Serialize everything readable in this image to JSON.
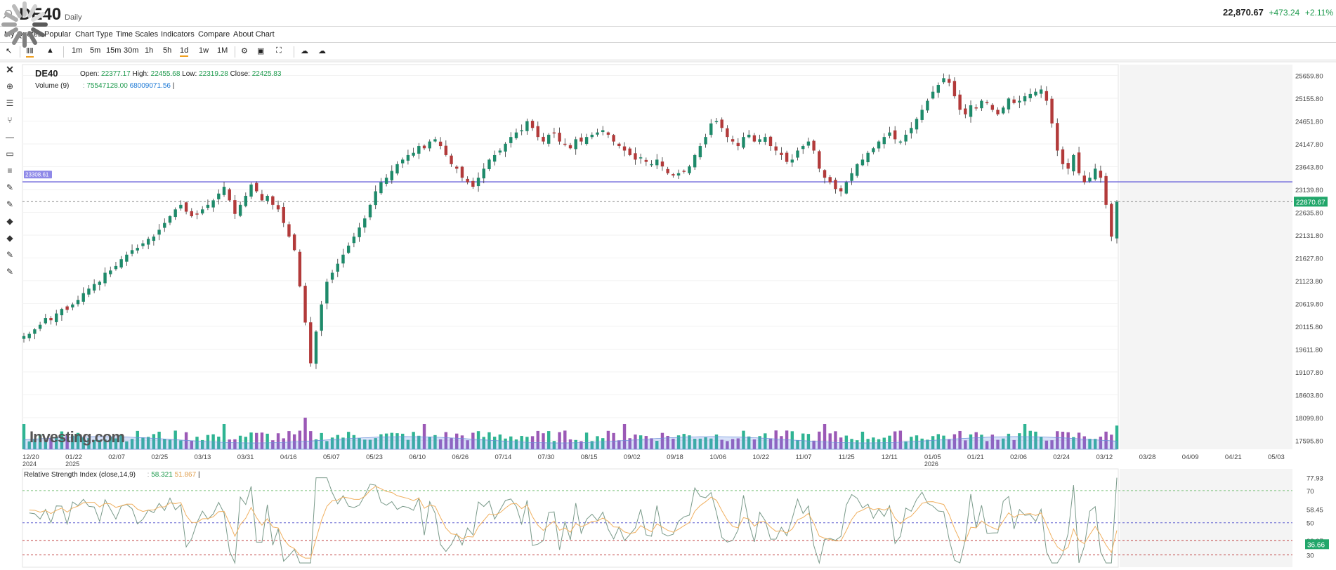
{
  "header": {
    "symbol": "DE40",
    "period": "Daily",
    "last": "22,870.67",
    "change": "+473.24",
    "change_pct": "+2.11%"
  },
  "menu": [
    "My Quotes",
    "Popular",
    "Chart Type",
    "Time Scales",
    "Indicators",
    "Compare",
    "About Chart"
  ],
  "toolbar": {
    "timeframes": [
      "1m",
      "5m",
      "15m",
      "30m",
      "1h",
      "5h",
      "1d",
      "1w",
      "1M"
    ],
    "active_timeframe": "1d",
    "icons": [
      "cursor-icon",
      "candles-icon",
      "mountain-icon",
      "gear-icon",
      "camera-icon",
      "fullscreen-icon",
      "cloud-download-icon",
      "cloud-upload-icon"
    ]
  },
  "legend": {
    "symbol": "DE40",
    "open_label": "Open:",
    "open": "22377.17",
    "high_label": "High:",
    "high": "22455.68",
    "low_label": "Low:",
    "low": "22319.28",
    "close_label": "Close:",
    "close": "22425.83",
    "volume_label": "Volume (9)",
    "volume_v1": "75547128.00",
    "volume_v2": "68009071.56"
  },
  "rsi_legend": {
    "label": "Relative Strength Index (close,14,9)",
    "v1": "58.321",
    "v2": "51.867"
  },
  "watermark": "Investing.com",
  "price_axis": [
    "25659.80",
    "25155.80",
    "24651.80",
    "24147.80",
    "23643.80",
    "23139.80",
    "22635.80",
    "22131.80",
    "21627.80",
    "21123.80",
    "20619.80",
    "20115.80",
    "19611.80",
    "19107.80",
    "18603.80",
    "18099.80",
    "17595.80"
  ],
  "price_marker": "22870.67",
  "hline_marker": "23308.61",
  "time_axis": [
    {
      "label": "12/20",
      "sub": "2024"
    },
    {
      "label": "01/22",
      "sub": "2025"
    },
    {
      "label": "02/07"
    },
    {
      "label": "02/25"
    },
    {
      "label": "03/13"
    },
    {
      "label": "03/31"
    },
    {
      "label": "04/16"
    },
    {
      "label": "05/07"
    },
    {
      "label": "05/23"
    },
    {
      "label": "06/10"
    },
    {
      "label": "06/26"
    },
    {
      "label": "07/14"
    },
    {
      "label": "07/30"
    },
    {
      "label": "08/15"
    },
    {
      "label": "09/02"
    },
    {
      "label": "09/18"
    },
    {
      "label": "10/06"
    },
    {
      "label": "10/22"
    },
    {
      "label": "11/07"
    },
    {
      "label": "11/25"
    },
    {
      "label": "12/11"
    },
    {
      "label": "01/05",
      "sub": "2026"
    },
    {
      "label": "01/21"
    },
    {
      "label": "02/06"
    },
    {
      "label": "02/24"
    },
    {
      "label": "03/12"
    },
    {
      "label": "03/28"
    },
    {
      "label": "04/09"
    },
    {
      "label": "04/21"
    },
    {
      "label": "05/03"
    }
  ],
  "rsi_axis": [
    "77.93",
    "70",
    "58.45",
    "50",
    "38.97",
    "30"
  ],
  "rsi_marker": "36.66",
  "colors": {
    "up": "#1e8a6a",
    "down": "#b23a3a",
    "hline": "#6b63d9",
    "volume_up": "#2fb493",
    "volume_down": "#9b59b6",
    "rsi": "#7a9a8a",
    "rsi_ma": "#f0b060",
    "marker": "#21a66a"
  },
  "chart_data": {
    "type": "candlestick",
    "title": "DE40",
    "ylim": [
      17400,
      25900
    ],
    "hline": 23308.61,
    "last_price": 22870.67,
    "closes": [
      19900,
      19950,
      20050,
      20150,
      20300,
      20250,
      20400,
      20500,
      20480,
      20600,
      20700,
      20850,
      20950,
      21050,
      21100,
      21300,
      21350,
      21450,
      21600,
      21700,
      21800,
      21850,
      21950,
      22050,
      22100,
      22250,
      22400,
      22550,
      22700,
      22800,
      22650,
      22550,
      22600,
      22700,
      22800,
      22900,
      23050,
      23200,
      22900,
      22600,
      22800,
      23000,
      23250,
      23100,
      22900,
      23000,
      22800,
      22700,
      22400,
      22100,
      21800,
      21000,
      20200,
      19300,
      20000,
      20600,
      21100,
      21300,
      21500,
      21700,
      21900,
      22100,
      22300,
      22500,
      22800,
      23100,
      23300,
      23400,
      23550,
      23700,
      23800,
      23900,
      23950,
      24100,
      24050,
      24200,
      24250,
      24100,
      23900,
      23700,
      23600,
      23400,
      23300,
      23200,
      23400,
      23600,
      23800,
      23900,
      24000,
      24150,
      24300,
      24400,
      24450,
      24650,
      24500,
      24300,
      24200,
      24350,
      24400,
      24200,
      24150,
      24050,
      24250,
      24200,
      24300,
      24350,
      24400,
      24450,
      24350,
      24200,
      24100,
      24000,
      23900,
      23800,
      23850,
      23750,
      23700,
      23800,
      23650,
      23500,
      23450,
      23500,
      23550,
      23650,
      23900,
      24100,
      24300,
      24600,
      24650,
      24500,
      24300,
      24200,
      24100,
      24300,
      24350,
      24200,
      24250,
      24300,
      24100,
      24000,
      23900,
      23750,
      23800,
      24000,
      24100,
      24200,
      24000,
      23600,
      23400,
      23300,
      23150,
      23100,
      23300,
      23500,
      23700,
      23800,
      23950,
      24050,
      24200,
      24300,
      24400,
      24250,
      24200,
      24350,
      24500,
      24700,
      24900,
      25100,
      25300,
      25450,
      25600,
      25500,
      25200,
      24900,
      24800,
      25000,
      24950,
      25100,
      25050,
      24900,
      24800,
      24950,
      25150,
      25050,
      25100,
      25200,
      25250,
      25300,
      25350,
      25100,
      24600,
      24000,
      23700,
      23600,
      23900,
      23500,
      23300,
      23400,
      23600,
      23400,
      22800,
      22100,
      22870
    ],
    "volume_axis_tick": "17595.80",
    "rsi": {
      "period": 14,
      "signal": 9,
      "last": 36.66,
      "levels": [
        30,
        50,
        70
      ]
    }
  }
}
